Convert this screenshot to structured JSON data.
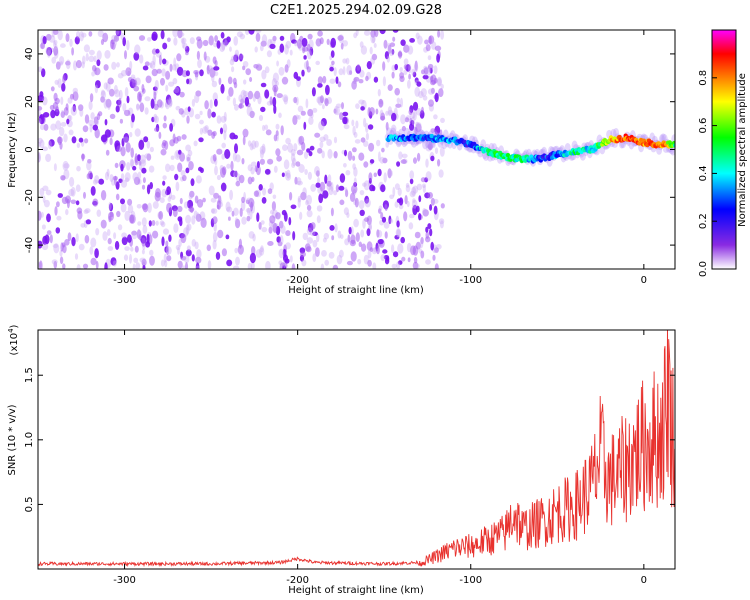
{
  "title": "C2E1.2025.294.02.09.G28",
  "chart_data": [
    {
      "type": "heatmap",
      "xlabel": "Height of straight line (km)",
      "ylabel": "Frequency (Hz)",
      "xlim": [
        -350,
        18
      ],
      "ylim": [
        -50,
        50
      ],
      "xticks": [
        -300,
        -200,
        -100,
        0
      ],
      "yticks": [
        -40,
        -20,
        0,
        20,
        40
      ],
      "colorbar": {
        "label": "Normalized spectral amplitude",
        "range": [
          0,
          1
        ],
        "ticks": [
          "0.0",
          "0.2",
          "0.4",
          "0.6",
          "0.8"
        ],
        "tick_values": [
          0.0,
          0.2,
          0.4,
          0.6,
          0.8
        ],
        "colormap": [
          "#ffffff",
          "#8a2be2",
          "#0000ff",
          "#00ffff",
          "#00ff00",
          "#ffff00",
          "#ff8000",
          "#ff0000",
          "#ff00ff"
        ]
      },
      "noise_region_x": [
        -350,
        -130
      ],
      "signal_track": {
        "x": [
          -148,
          -140,
          -130,
          -120,
          -110,
          -100,
          -90,
          -80,
          -70,
          -60,
          -50,
          -40,
          -30,
          -20,
          -10,
          0,
          10,
          18
        ],
        "freq": [
          5,
          5,
          5,
          4.5,
          4,
          2,
          -1,
          -3,
          -4,
          -4,
          -2,
          -1,
          0,
          4,
          5,
          3,
          2,
          2
        ],
        "amplitude": [
          0.35,
          0.3,
          0.25,
          0.3,
          0.3,
          0.25,
          0.45,
          0.5,
          0.45,
          0.25,
          0.3,
          0.45,
          0.4,
          0.7,
          0.85,
          0.8,
          0.85,
          0.5
        ]
      }
    },
    {
      "type": "line",
      "xlabel": "Height of straight line (km)",
      "ylabel": "SNR (10 * v/v)",
      "y_multiplier": "(x10",
      "y_multiplier_exp": "4",
      "y_multiplier_close": ")",
      "xlim": [
        -350,
        18
      ],
      "ylim": [
        0,
        1.85
      ],
      "xticks": [
        -300,
        -200,
        -100,
        0
      ],
      "yticks": [
        0.5,
        1.0,
        1.5
      ],
      "ytick_labels": [
        "0.5",
        "1.0",
        "1.5"
      ],
      "color": "#e8322e",
      "series": [
        {
          "x": [
            -350,
            -300,
            -250,
            -210,
            -200,
            -190,
            -150,
            -130,
            -120,
            -110,
            -100,
            -90,
            -80,
            -75,
            -70,
            -60,
            -50,
            -40,
            -30,
            -25,
            -20,
            -15,
            -10,
            -5,
            0,
            5,
            10,
            12,
            14,
            16,
            18
          ],
          "y": [
            0.04,
            0.04,
            0.04,
            0.05,
            0.08,
            0.05,
            0.04,
            0.05,
            0.12,
            0.2,
            0.22,
            0.28,
            0.35,
            0.55,
            0.38,
            0.45,
            0.55,
            0.6,
            0.8,
            1.1,
            0.85,
            0.9,
            1.0,
            1.1,
            1.2,
            1.25,
            1.3,
            1.45,
            1.85,
            1.3,
            1.35
          ]
        }
      ]
    }
  ]
}
